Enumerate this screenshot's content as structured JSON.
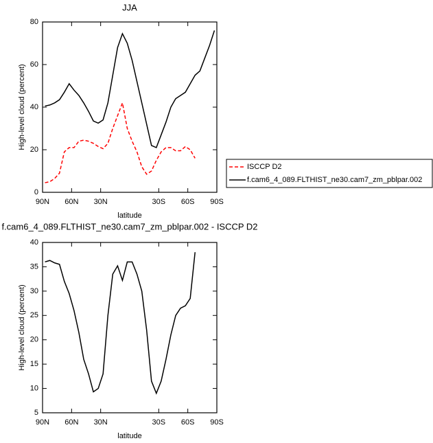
{
  "chart_data": [
    {
      "type": "line",
      "title": "JJA",
      "xlabel": "latitude",
      "ylabel": "High-level cloud (percent)",
      "x": [
        87.5,
        82.5,
        77.5,
        72.5,
        67.5,
        62.5,
        57.5,
        52.5,
        47.5,
        42.5,
        37.5,
        32.5,
        27.5,
        22.5,
        17.5,
        12.5,
        7.5,
        2.5,
        -2.5,
        -7.5,
        -12.5,
        -17.5,
        -22.5,
        -27.5,
        -32.5,
        -37.5,
        -42.5,
        -47.5,
        -52.5,
        -57.5,
        -62.5,
        -67.5,
        -72.5,
        -77.5,
        -82.5,
        -87.5
      ],
      "xlim": [
        90,
        -90
      ],
      "xticks": [
        {
          "value": 90,
          "label": "90N"
        },
        {
          "value": 60,
          "label": "60N"
        },
        {
          "value": 30,
          "label": "30N"
        },
        {
          "value": -30,
          "label": "30S"
        },
        {
          "value": -60,
          "label": "60S"
        },
        {
          "value": -90,
          "label": "90S"
        }
      ],
      "ylim": [
        0,
        80
      ],
      "yticks": [
        0,
        20,
        40,
        60,
        80
      ],
      "legend": "right",
      "series": [
        {
          "name": "ISCCP D2",
          "color": "#ff0000",
          "dash": true,
          "values": [
            4.5,
            5,
            6.5,
            9,
            19,
            21,
            21,
            24,
            24.5,
            24,
            23,
            21.5,
            20.5,
            23,
            30,
            36,
            42,
            30,
            24,
            19,
            12,
            8.5,
            10,
            15,
            19,
            21,
            21,
            19.5,
            19.5,
            21.5,
            20,
            16,
            null,
            null,
            null,
            null
          ]
        },
        {
          "name": "f.cam6_4_089.FLTHIST_ne30.cam7_zm_pblpar.002",
          "color": "#000000",
          "dash": false,
          "values": [
            40.5,
            41,
            42,
            43.5,
            47,
            51,
            48,
            45.5,
            42,
            38,
            33.5,
            32.5,
            34,
            42,
            55,
            68,
            74.5,
            70,
            62,
            52,
            42,
            32,
            22,
            21,
            27,
            33,
            40,
            44,
            45.5,
            47,
            51,
            55,
            57,
            63,
            69,
            76
          ]
        }
      ]
    },
    {
      "type": "line",
      "title": "f.cam6_4_089.FLTHIST_ne30.cam7_zm_pblpar.002 - ISCCP D2",
      "xlabel": "latitude",
      "ylabel": "High-level cloud (percent)",
      "x": [
        87.5,
        82.5,
        77.5,
        72.5,
        67.5,
        62.5,
        57.5,
        52.5,
        47.5,
        42.5,
        37.5,
        32.5,
        27.5,
        22.5,
        17.5,
        12.5,
        7.5,
        2.5,
        -2.5,
        -7.5,
        -12.5,
        -17.5,
        -22.5,
        -27.5,
        -32.5,
        -37.5,
        -42.5,
        -47.5,
        -52.5,
        -57.5,
        -62.5,
        -67.5,
        -72.5,
        -77.5,
        -82.5,
        -87.5
      ],
      "xlim": [
        90,
        -90
      ],
      "xticks": [
        {
          "value": 90,
          "label": "90N"
        },
        {
          "value": 60,
          "label": "60N"
        },
        {
          "value": 30,
          "label": "30N"
        },
        {
          "value": -30,
          "label": "30S"
        },
        {
          "value": -60,
          "label": "60S"
        },
        {
          "value": -90,
          "label": "90S"
        }
      ],
      "ylim": [
        5,
        40
      ],
      "yticks": [
        5,
        10,
        15,
        20,
        25,
        30,
        35,
        40
      ],
      "series": [
        {
          "color": "#000000",
          "dash": false,
          "values": [
            36,
            36.3,
            35.8,
            35.5,
            32,
            29.5,
            26,
            21.5,
            16,
            13,
            9.3,
            10,
            13,
            25,
            33.5,
            35.2,
            32.2,
            36,
            36,
            33.5,
            30,
            22,
            11.5,
            9,
            11.5,
            16,
            21,
            25,
            26.5,
            27,
            28.5,
            38,
            null,
            null,
            null,
            null
          ]
        }
      ]
    }
  ]
}
